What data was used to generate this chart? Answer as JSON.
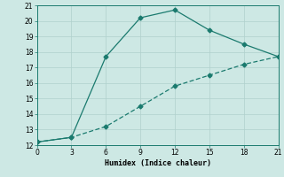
{
  "line1_x": [
    0,
    3,
    6,
    9,
    12,
    15,
    18,
    21
  ],
  "line1_y": [
    12.2,
    12.5,
    17.7,
    20.2,
    20.7,
    19.4,
    18.5,
    17.7
  ],
  "line2_x": [
    0,
    3,
    6,
    9,
    12,
    15,
    18,
    21
  ],
  "line2_y": [
    12.2,
    12.5,
    13.2,
    14.5,
    15.8,
    16.5,
    17.2,
    17.7
  ],
  "color": "#1a7a6e",
  "xlabel": "Humidex (Indice chaleur)",
  "xlim": [
    0,
    21
  ],
  "ylim": [
    12,
    21
  ],
  "xticks": [
    0,
    3,
    6,
    9,
    12,
    15,
    18,
    21
  ],
  "yticks": [
    12,
    13,
    14,
    15,
    16,
    17,
    18,
    19,
    20,
    21
  ],
  "bg_color": "#cde8e4",
  "grid_color": "#b0d0cc"
}
